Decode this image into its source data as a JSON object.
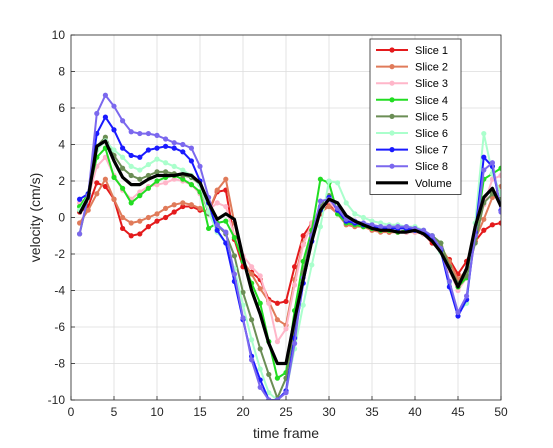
{
  "chart_data": {
    "type": "line",
    "xlabel": "time frame",
    "ylabel": "velocity (cm/s)",
    "xlim": [
      0,
      50
    ],
    "ylim": [
      -10,
      10
    ],
    "xticks": [
      0,
      5,
      10,
      15,
      20,
      25,
      30,
      35,
      40,
      45,
      50
    ],
    "yticks": [
      -10,
      -8,
      -6,
      -4,
      -2,
      0,
      2,
      4,
      6,
      8,
      10
    ],
    "grid": true,
    "legend_position": "top-right",
    "x": [
      1,
      2,
      3,
      4,
      5,
      6,
      7,
      8,
      9,
      10,
      11,
      12,
      13,
      14,
      15,
      16,
      17,
      18,
      19,
      20,
      21,
      22,
      23,
      24,
      25,
      26,
      27,
      28,
      29,
      30,
      31,
      32,
      33,
      34,
      35,
      36,
      37,
      38,
      39,
      40,
      41,
      42,
      43,
      44,
      45,
      46,
      47,
      48,
      49,
      50
    ],
    "series": [
      {
        "name": "Slice 1",
        "color": "#e41a1c",
        "marker": true,
        "values": [
          0.3,
          0.6,
          1.9,
          1.7,
          1.0,
          -0.6,
          -1.0,
          -0.9,
          -0.5,
          -0.2,
          0.0,
          0.3,
          0.6,
          0.6,
          0.4,
          0.3,
          1.4,
          1.5,
          -1.2,
          -2.7,
          -3.0,
          -3.4,
          -4.5,
          -4.7,
          -4.6,
          -2.7,
          -1.0,
          -0.3,
          0.2,
          0.7,
          0.3,
          -0.2,
          -0.3,
          -0.4,
          -0.6,
          -0.7,
          -0.8,
          -0.8,
          -0.7,
          -0.7,
          -0.9,
          -1.4,
          -1.8,
          -2.3,
          -3.1,
          -2.4,
          -1.3,
          -0.7,
          -0.4,
          -0.3
        ]
      },
      {
        "name": "Slice 2",
        "color": "#e07b5a",
        "marker": true,
        "values": [
          -0.3,
          0.4,
          1.3,
          2.1,
          1.0,
          0.0,
          -0.3,
          -0.2,
          0.0,
          0.2,
          0.5,
          0.7,
          0.8,
          0.7,
          0.5,
          0.3,
          1.5,
          2.1,
          -0.3,
          -2.4,
          -3.1,
          -3.9,
          -4.6,
          -5.6,
          -5.9,
          -3.4,
          -1.4,
          -0.4,
          0.3,
          0.6,
          0.2,
          -0.4,
          -0.5,
          -0.5,
          -0.7,
          -0.8,
          -0.8,
          -0.8,
          -0.8,
          -0.8,
          -0.9,
          -1.2,
          -1.6,
          -2.4,
          -3.4,
          -2.9,
          -1.2,
          -0.1,
          1.1,
          1.7
        ]
      },
      {
        "name": "Slice 3",
        "color": "#ffb6c9",
        "marker": true,
        "values": [
          0.8,
          1.1,
          2.8,
          3.3,
          2.3,
          1.5,
          1.0,
          1.4,
          1.7,
          1.8,
          1.9,
          2.1,
          2.0,
          1.8,
          1.3,
          0.4,
          0.8,
          0.6,
          -1.0,
          -2.1,
          -2.7,
          -3.2,
          -4.7,
          -6.8,
          -6.1,
          -3.7,
          -1.5,
          -0.3,
          0.5,
          0.9,
          0.3,
          -0.3,
          -0.4,
          -0.4,
          -0.6,
          -0.7,
          -0.7,
          -0.8,
          -0.8,
          -0.8,
          -0.9,
          -1.1,
          -1.6,
          -2.9,
          -4.0,
          -3.3,
          -1.0,
          0.7,
          2.1,
          2.3
        ]
      },
      {
        "name": "Slice 4",
        "color": "#22dd22",
        "marker": true,
        "values": [
          0.6,
          1.3,
          3.3,
          3.8,
          2.2,
          1.6,
          0.8,
          1.2,
          1.6,
          2.0,
          2.2,
          2.3,
          2.1,
          1.8,
          1.4,
          -0.6,
          -0.3,
          -0.2,
          -1.1,
          -2.4,
          -3.6,
          -4.7,
          -6.8,
          -8.8,
          -8.5,
          -5.1,
          -2.4,
          -0.7,
          2.1,
          1.9,
          0.2,
          -0.3,
          -0.4,
          -0.5,
          -0.6,
          -0.7,
          -0.7,
          -0.8,
          -0.7,
          -0.7,
          -0.8,
          -1.0,
          -1.4,
          -2.7,
          -3.8,
          -3.3,
          -1.1,
          2.1,
          2.4,
          2.7
        ]
      },
      {
        "name": "Slice 5",
        "color": "#6b8e55",
        "marker": true,
        "values": [
          -0.9,
          1.1,
          3.9,
          4.4,
          3.4,
          2.7,
          2.3,
          2.1,
          2.3,
          2.5,
          2.5,
          2.4,
          2.3,
          2.2,
          1.8,
          0.2,
          -0.4,
          -0.9,
          -2.1,
          -4.1,
          -5.6,
          -7.2,
          -8.6,
          -9.9,
          -8.8,
          -6.0,
          -3.0,
          -0.9,
          0.6,
          1.2,
          0.4,
          -0.2,
          -0.3,
          -0.4,
          -0.5,
          -0.6,
          -0.6,
          -0.6,
          -0.6,
          -0.6,
          -0.8,
          -1.0,
          -1.4,
          -2.7,
          -3.6,
          -3.2,
          -1.4,
          0.8,
          1.3,
          1.0
        ]
      },
      {
        "name": "Slice 6",
        "color": "#aaffcc",
        "marker": true,
        "values": [
          0.4,
          1.2,
          3.7,
          4.2,
          3.7,
          3.3,
          2.8,
          2.6,
          2.9,
          3.2,
          3.0,
          2.8,
          2.6,
          2.3,
          1.8,
          0.3,
          -0.8,
          -1.4,
          -2.8,
          -4.8,
          -6.7,
          -8.3,
          -9.6,
          -10.0,
          -9.5,
          -7.2,
          -4.8,
          -2.6,
          -0.5,
          2.0,
          1.9,
          0.8,
          0.2,
          0.0,
          -0.2,
          -0.3,
          -0.4,
          -0.4,
          -0.5,
          -0.5,
          -0.7,
          -1.0,
          -1.9,
          -3.6,
          -5.2,
          -4.7,
          -0.3,
          4.6,
          2.4,
          1.3
        ]
      },
      {
        "name": "Slice 7",
        "color": "#1a1aff",
        "marker": true,
        "values": [
          1.0,
          1.3,
          4.6,
          5.5,
          4.8,
          3.8,
          3.4,
          3.3,
          3.7,
          3.8,
          3.9,
          3.8,
          3.6,
          3.1,
          2.0,
          0.8,
          -0.7,
          -1.4,
          -3.5,
          -5.6,
          -7.6,
          -8.9,
          -10.0,
          -10.0,
          -9.5,
          -6.6,
          -3.6,
          -1.3,
          0.4,
          1.1,
          0.4,
          -0.2,
          -0.3,
          -0.4,
          -0.5,
          -0.6,
          -0.6,
          -0.6,
          -0.6,
          -0.7,
          -0.8,
          -1.1,
          -1.8,
          -3.8,
          -5.4,
          -4.5,
          -0.8,
          3.3,
          2.8,
          0.4
        ]
      },
      {
        "name": "Slice 8",
        "color": "#7b68ee",
        "marker": true,
        "values": [
          -0.9,
          1.2,
          5.7,
          6.7,
          6.1,
          5.3,
          4.7,
          4.6,
          4.6,
          4.5,
          4.3,
          4.1,
          4.0,
          3.8,
          2.8,
          1.1,
          -0.4,
          -0.8,
          -3.1,
          -5.5,
          -7.8,
          -9.3,
          -10.0,
          -10.0,
          -9.6,
          -6.9,
          -3.3,
          -1.0,
          0.9,
          1.0,
          0.5,
          -0.1,
          -0.2,
          -0.3,
          -0.4,
          -0.5,
          -0.5,
          -0.5,
          -0.5,
          -0.6,
          -0.7,
          -1.0,
          -1.7,
          -3.5,
          -5.2,
          -4.3,
          -1.0,
          2.6,
          3.0,
          0.3
        ]
      },
      {
        "name": "Volume",
        "color": "#000000",
        "marker": false,
        "values": [
          0.2,
          1.1,
          3.9,
          4.2,
          3.1,
          2.2,
          1.8,
          1.8,
          2.1,
          2.3,
          2.3,
          2.3,
          2.4,
          2.3,
          1.9,
          0.8,
          -0.1,
          0.2,
          -0.1,
          -2.2,
          -4.0,
          -5.3,
          -6.9,
          -8.0,
          -8.0,
          -5.6,
          -3.4,
          -1.3,
          0.4,
          1.0,
          0.8,
          0.1,
          -0.2,
          -0.4,
          -0.6,
          -0.7,
          -0.7,
          -0.8,
          -0.8,
          -0.7,
          -0.9,
          -1.3,
          -1.9,
          -2.8,
          -3.8,
          -2.8,
          -0.5,
          1.1,
          1.6,
          0.6
        ]
      }
    ]
  }
}
